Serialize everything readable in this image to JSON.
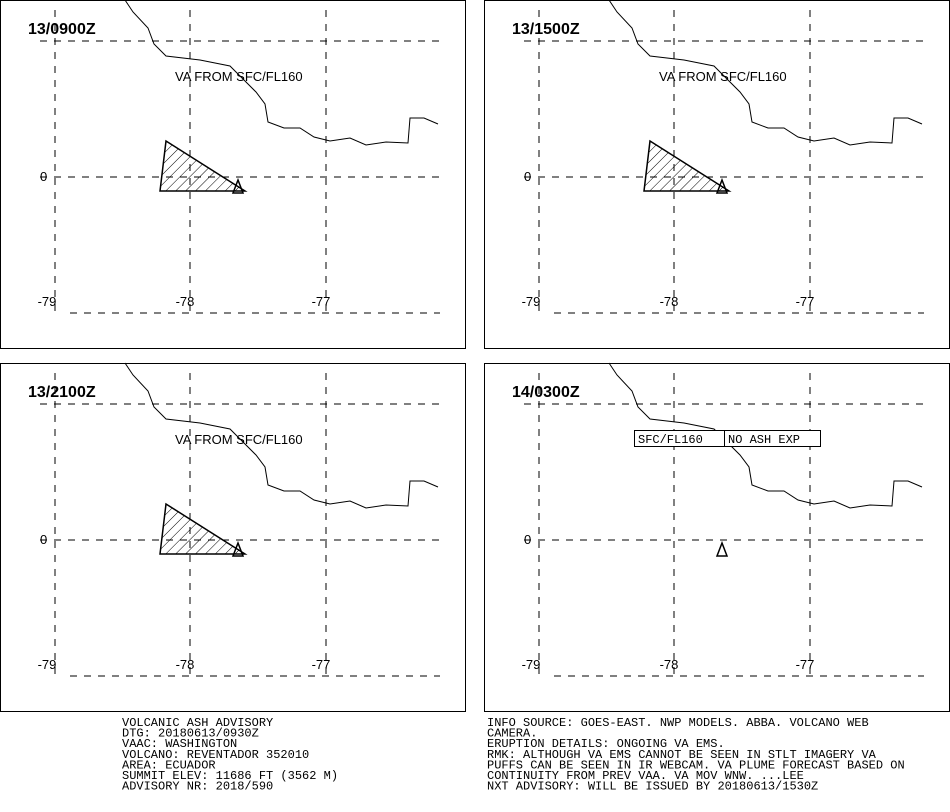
{
  "panels": [
    {
      "time": "13/0900Z",
      "label": "VA FROM SFC/FL160",
      "lat_labels": [
        "0"
      ],
      "lon_labels": [
        "-79",
        "-78",
        "-77"
      ]
    },
    {
      "time": "13/1500Z",
      "label": "VA FROM SFC/FL160",
      "lat_labels": [
        "0"
      ],
      "lon_labels": [
        "-79",
        "-78",
        "-77"
      ]
    },
    {
      "time": "13/2100Z",
      "label": "VA FROM SFC/FL160",
      "lat_labels": [
        "0"
      ],
      "lon_labels": [
        "-79",
        "-78",
        "-77"
      ]
    },
    {
      "time": "14/0300Z",
      "box": [
        "SFC/FL160",
        "NO ASH EXP"
      ],
      "lat_labels": [
        "0"
      ],
      "lon_labels": [
        "-79",
        "-78",
        "-77"
      ]
    }
  ],
  "advisory_left": [
    "VOLCANIC ASH ADVISORY",
    "DTG: 20180613/0930Z",
    "VAAC: WASHINGTON",
    "VOLCANO: REVENTADOR 352010",
    "AREA: ECUADOR",
    "SUMMIT ELEV: 11686 FT (3562 M)",
    "ADVISORY NR: 2018/590"
  ],
  "advisory_right": [
    "INFO SOURCE: GOES-EAST. NWP MODELS. ABBA. VOLCANO WEB",
    "CAMERA.",
    "ERUPTION DETAILS: ONGOING VA EMS.",
    "RMK: ALTHOUGH VA EMS CANNOT BE SEEN IN STLT IMAGERY VA",
    "PUFFS CAN BE SEEN IN IR WEBCAM. VA PLUME FORECAST BASED ON",
    "CONTINUITY FROM PREV VAA. VA MOV WNW. ...LEE",
    "NXT ADVISORY: WILL BE ISSUED BY 20180613/1530Z"
  ]
}
